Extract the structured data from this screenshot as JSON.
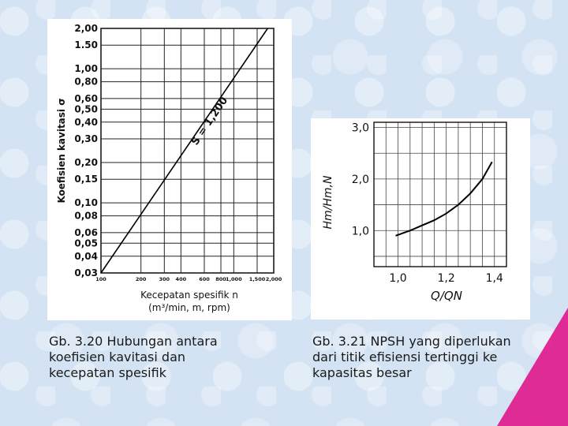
{
  "chart_data": [
    {
      "type": "line",
      "ylabel": "Koefisien kavitasi σ",
      "xlabel_line1": "Kecepatan spesifik n",
      "xlabel_line2": "(m³/min, m, rpm)",
      "y_tick_labels": [
        "2,00",
        "1.50",
        "1,00",
        "0,80",
        "0,60",
        "0,50",
        "0,40",
        "0,30",
        "0,20",
        "0,15",
        "0,10",
        "0,08",
        "0,06",
        "0,05",
        "0,04",
        "0,03"
      ],
      "y_tick_values": [
        2.0,
        1.5,
        1.0,
        0.8,
        0.6,
        0.5,
        0.4,
        0.3,
        0.2,
        0.15,
        0.1,
        0.08,
        0.06,
        0.05,
        0.04,
        0.03
      ],
      "x_tick_labels": [
        "100",
        "200",
        "300",
        "400",
        "600",
        "800",
        "1,000",
        "1,500",
        "2,000"
      ],
      "x_tick_values": [
        100,
        200,
        300,
        400,
        600,
        800,
        1000,
        1500,
        2000
      ],
      "scale": "log-log",
      "grid": true,
      "xlim": [
        100,
        2000
      ],
      "ylim": [
        0.03,
        2.0
      ],
      "series": [
        {
          "name": "S = 1,200",
          "x": [
            100,
            1800
          ],
          "y": [
            0.03,
            2.0
          ]
        }
      ]
    },
    {
      "type": "line",
      "ylabel": "Hm/Hm,N",
      "xlabel": "Q/QN",
      "y_tick_labels": [
        "3,0",
        "2,0",
        "1,0"
      ],
      "y_tick_values": [
        3.0,
        2.0,
        1.0
      ],
      "x_tick_labels": [
        "1,0",
        "1,2",
        "1,4"
      ],
      "x_tick_values": [
        1.0,
        1.2,
        1.4
      ],
      "grid": true,
      "xlim": [
        0.9,
        1.45
      ],
      "ylim": [
        0.3,
        3.1
      ],
      "series": [
        {
          "x": [
            0.99,
            1.05,
            1.1,
            1.15,
            1.2,
            1.25,
            1.3,
            1.35,
            1.39
          ],
          "y": [
            0.9,
            1.0,
            1.1,
            1.2,
            1.33,
            1.5,
            1.72,
            2.0,
            2.33
          ]
        }
      ]
    }
  ],
  "captions": {
    "left_line1": "Gb. 3.20 Hubungan antara",
    "left_line2": "koefisien kavitasi dan",
    "left_line3": "kecepatan spesifik",
    "right_line1": "Gb. 3.21 NPSH yang diperlukan",
    "right_line2": "dari titik efisiensi tertinggi ke",
    "right_line3": "kapasitas besar"
  },
  "colors": {
    "accent_corner": "#e0168c",
    "background": "#d4e3f3"
  }
}
